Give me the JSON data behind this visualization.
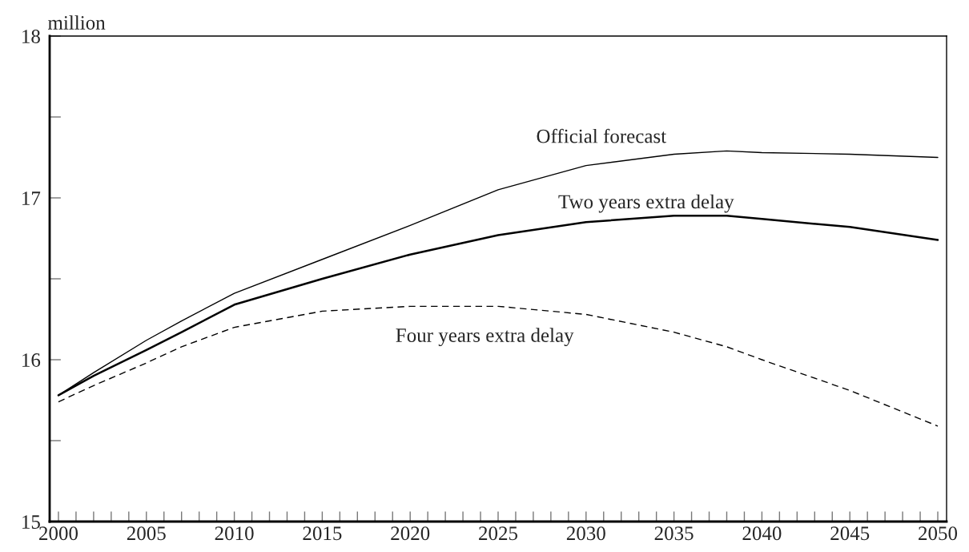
{
  "chart_data": {
    "type": "line",
    "ylabel": "million",
    "x": [
      2000,
      2002,
      2005,
      2007,
      2010,
      2015,
      2020,
      2025,
      2030,
      2035,
      2038,
      2040,
      2045,
      2050
    ],
    "series": [
      {
        "color": "#000000",
        "line_style": "solid",
        "values": [
          15.78,
          15.92,
          16.12,
          16.24,
          16.41,
          16.62,
          16.83,
          17.05,
          17.2,
          17.27,
          17.29,
          17.28,
          17.27,
          17.25
        ]
      },
      {
        "color": "#000000",
        "line_style": "solid",
        "values": [
          15.78,
          15.9,
          16.06,
          16.17,
          16.34,
          16.5,
          16.65,
          16.77,
          16.85,
          16.89,
          16.89,
          16.87,
          16.82,
          16.74
        ]
      },
      {
        "color": "#000000",
        "line_style": "dashed",
        "values": [
          15.74,
          15.84,
          15.98,
          16.08,
          16.2,
          16.3,
          16.33,
          16.33,
          16.28,
          16.17,
          16.08,
          16.0,
          15.81,
          15.59
        ]
      }
    ],
    "annotations": [
      "Official forecast",
      "Two years extra delay",
      "Four years extra delay"
    ],
    "xlim": [
      1999.5,
      2050.5
    ],
    "ylim": [
      15,
      18
    ],
    "xticks": [
      {
        "value": 2000,
        "label": "2000"
      },
      {
        "value": 2001,
        "label": null
      },
      {
        "value": 2002,
        "label": null
      },
      {
        "value": 2003,
        "label": null
      },
      {
        "value": 2004,
        "label": null
      },
      {
        "value": 2005,
        "label": "2005"
      },
      {
        "value": 2006,
        "label": null
      },
      {
        "value": 2007,
        "label": null
      },
      {
        "value": 2008,
        "label": null
      },
      {
        "value": 2009,
        "label": null
      },
      {
        "value": 2010,
        "label": "2010"
      },
      {
        "value": 2011,
        "label": null
      },
      {
        "value": 2012,
        "label": null
      },
      {
        "value": 2013,
        "label": null
      },
      {
        "value": 2014,
        "label": null
      },
      {
        "value": 2015,
        "label": "2015"
      },
      {
        "value": 2016,
        "label": null
      },
      {
        "value": 2017,
        "label": null
      },
      {
        "value": 2018,
        "label": null
      },
      {
        "value": 2019,
        "label": null
      },
      {
        "value": 2020,
        "label": "2020"
      },
      {
        "value": 2021,
        "label": null
      },
      {
        "value": 2022,
        "label": null
      },
      {
        "value": 2023,
        "label": null
      },
      {
        "value": 2024,
        "label": null
      },
      {
        "value": 2025,
        "label": "2025"
      },
      {
        "value": 2026,
        "label": null
      },
      {
        "value": 2027,
        "label": null
      },
      {
        "value": 2028,
        "label": null
      },
      {
        "value": 2029,
        "label": null
      },
      {
        "value": 2030,
        "label": "2030"
      },
      {
        "value": 2031,
        "label": null
      },
      {
        "value": 2032,
        "label": null
      },
      {
        "value": 2033,
        "label": null
      },
      {
        "value": 2034,
        "label": null
      },
      {
        "value": 2035,
        "label": "2035"
      },
      {
        "value": 2036,
        "label": null
      },
      {
        "value": 2037,
        "label": null
      },
      {
        "value": 2038,
        "label": null
      },
      {
        "value": 2039,
        "label": null
      },
      {
        "value": 2040,
        "label": "2040"
      },
      {
        "value": 2041,
        "label": null
      },
      {
        "value": 2042,
        "label": null
      },
      {
        "value": 2043,
        "label": null
      },
      {
        "value": 2044,
        "label": null
      },
      {
        "value": 2045,
        "label": "2045"
      },
      {
        "value": 2046,
        "label": null
      },
      {
        "value": 2047,
        "label": null
      },
      {
        "value": 2048,
        "label": null
      },
      {
        "value": 2049,
        "label": null
      },
      {
        "value": 2050,
        "label": "2050"
      }
    ],
    "yticks": [
      15,
      {
        "value": 15.5,
        "label": null
      },
      16,
      {
        "value": 16.5,
        "label": null
      },
      17,
      {
        "value": 17.5,
        "label": null
      },
      18
    ],
    "grid": false,
    "legend": false
  }
}
